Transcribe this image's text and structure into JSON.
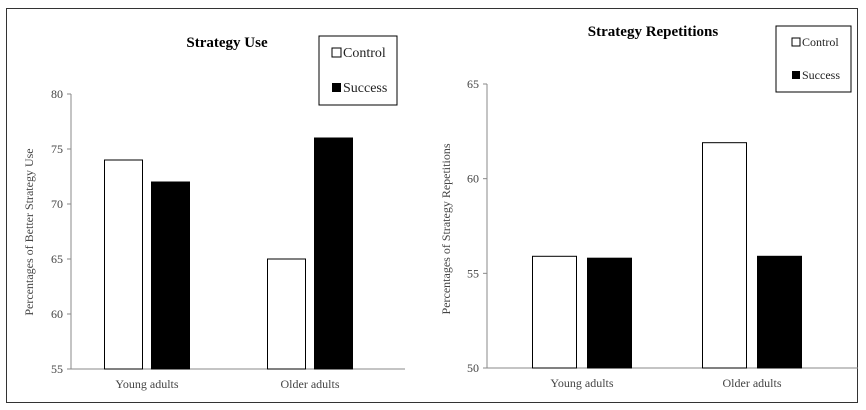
{
  "chart_data": [
    {
      "type": "bar",
      "title": "Strategy Use",
      "xlabel": "",
      "ylabel": "Percentages of Better Strategy Use",
      "categories": [
        "Young adults",
        "Older adults"
      ],
      "ylim": [
        55,
        80
      ],
      "yticks": [
        55,
        60,
        65,
        70,
        75,
        80
      ],
      "series": [
        {
          "name": "Control",
          "values": [
            74,
            65
          ],
          "color": "#ffffff"
        },
        {
          "name": "Success",
          "values": [
            72,
            76
          ],
          "color": "#000000"
        }
      ],
      "legend": "top-right",
      "grid": false
    },
    {
      "type": "bar",
      "title": "Strategy Repetitions",
      "xlabel": "",
      "ylabel": "Percentages of Strategy Repetitions",
      "categories": [
        "Young adults",
        "Older adults"
      ],
      "ylim": [
        50,
        65
      ],
      "yticks": [
        50,
        55,
        60,
        65
      ],
      "series": [
        {
          "name": "Control",
          "values": [
            55.9,
            61.9
          ],
          "color": "#ffffff"
        },
        {
          "name": "Success",
          "values": [
            55.8,
            55.9
          ],
          "color": "#000000"
        }
      ],
      "legend": "top-right",
      "grid": false
    }
  ]
}
